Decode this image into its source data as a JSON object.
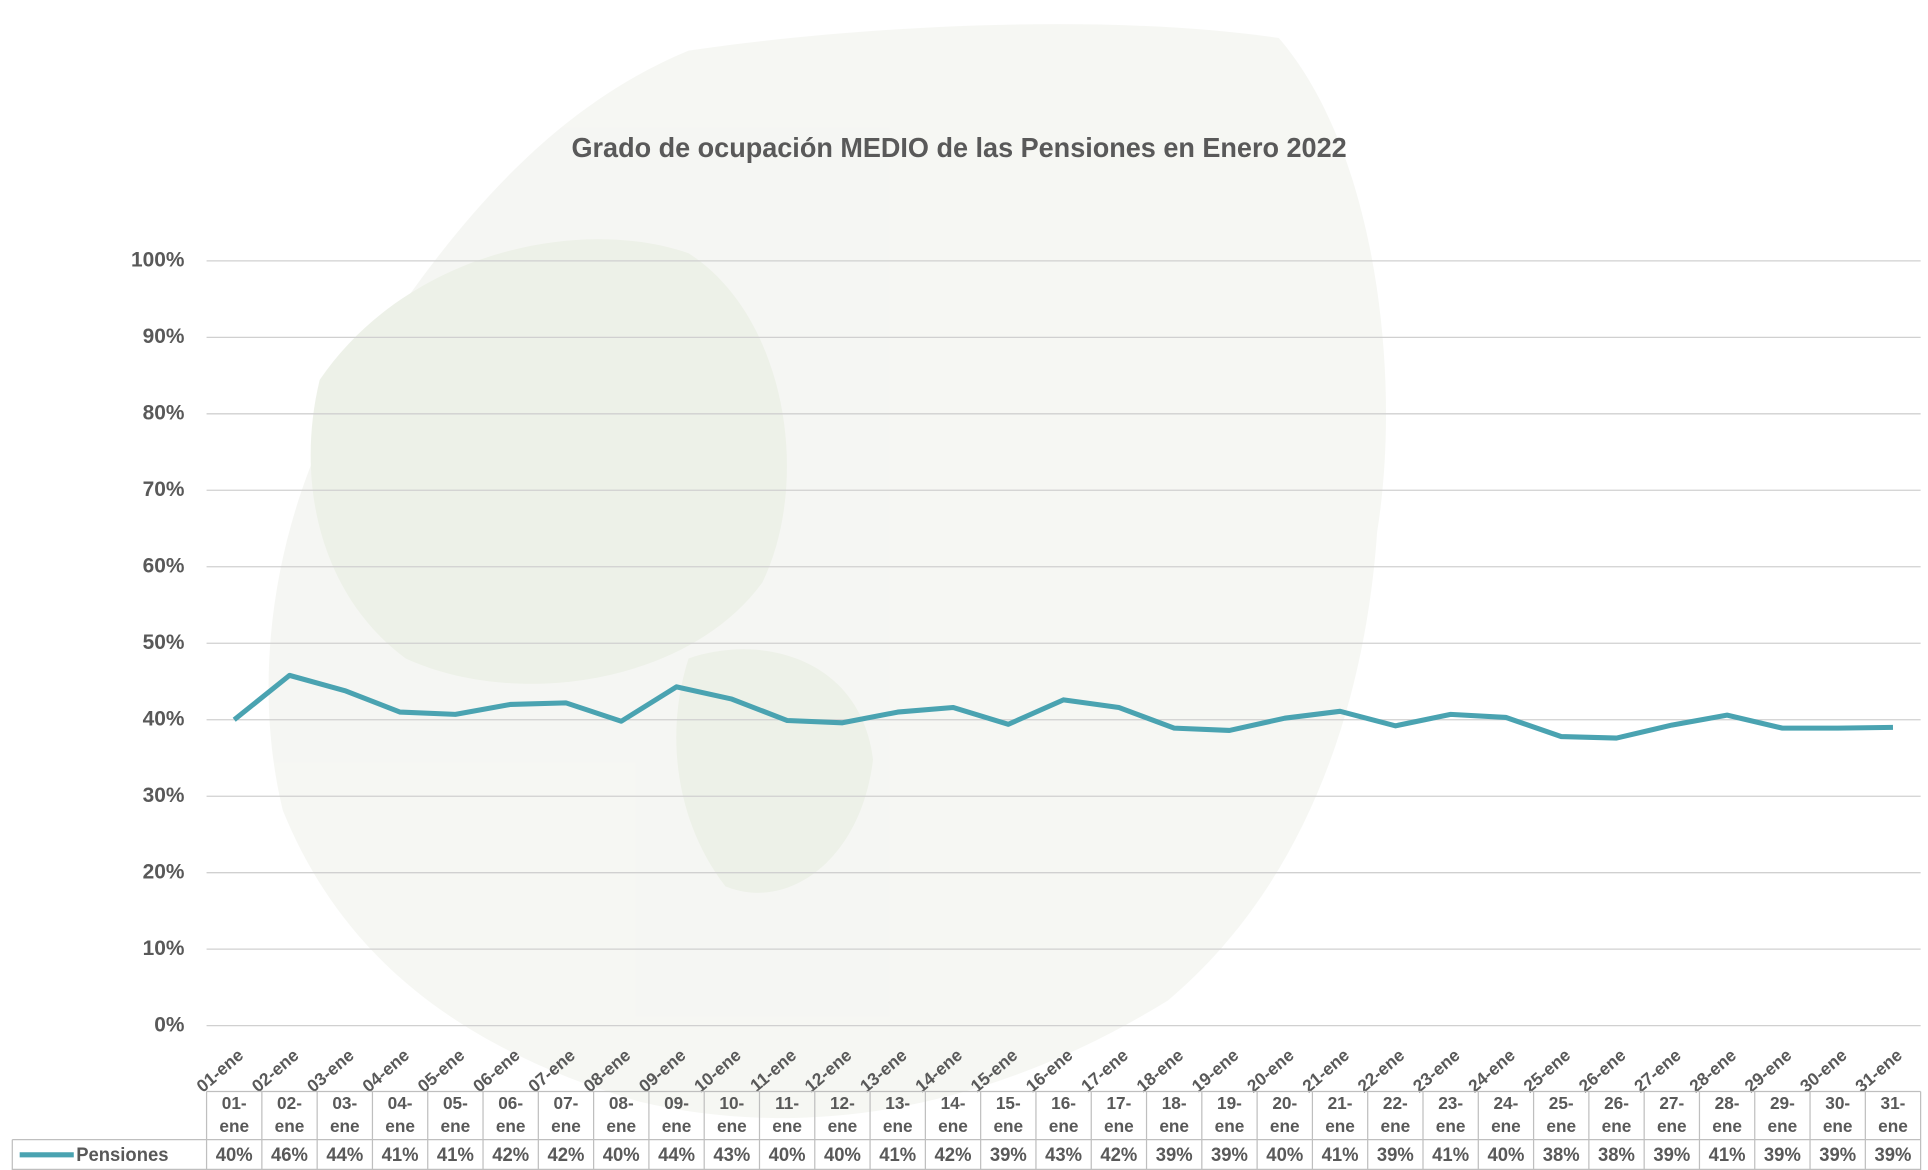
{
  "chart_data": {
    "type": "line",
    "title": "Grado de ocupación MEDIO de las Pensiones en Enero 2022",
    "categories": [
      "01-ene",
      "02-ene",
      "03-ene",
      "04-ene",
      "05-ene",
      "06-ene",
      "07-ene",
      "08-ene",
      "09-ene",
      "10-ene",
      "11-ene",
      "12-ene",
      "13-ene",
      "14-ene",
      "15-ene",
      "16-ene",
      "17-ene",
      "18-ene",
      "19-ene",
      "20-ene",
      "21-ene",
      "22-ene",
      "23-ene",
      "24-ene",
      "25-ene",
      "26-ene",
      "27-ene",
      "28-ene",
      "29-ene",
      "30-ene",
      "31-ene"
    ],
    "series": [
      {
        "name": "Pensiones",
        "color": "#4aa3b1",
        "values": [
          40,
          45.8,
          43.8,
          41,
          40.7,
          42,
          42.2,
          39.8,
          44.3,
          42.7,
          39.9,
          39.6,
          41,
          41.6,
          39.4,
          42.6,
          41.6,
          38.9,
          38.6,
          40.2,
          41.1,
          39.2,
          40.7,
          40.3,
          37.8,
          37.6,
          39.3,
          40.6,
          38.9,
          38.9,
          39.0
        ],
        "value_labels": [
          "40%",
          "46%",
          "44%",
          "41%",
          "41%",
          "42%",
          "42%",
          "40%",
          "44%",
          "43%",
          "40%",
          "40%",
          "41%",
          "42%",
          "39%",
          "43%",
          "42%",
          "39%",
          "39%",
          "40%",
          "41%",
          "39%",
          "41%",
          "40%",
          "38%",
          "38%",
          "39%",
          "41%",
          "39%",
          "39%",
          "39%"
        ]
      }
    ],
    "ylim": [
      0,
      100
    ],
    "yticks": [
      {
        "value": 0,
        "label": "0%"
      },
      {
        "value": 10,
        "label": "10%"
      },
      {
        "value": 20,
        "label": "20%"
      },
      {
        "value": 30,
        "label": "30%"
      },
      {
        "value": 40,
        "label": "40%"
      },
      {
        "value": 50,
        "label": "50%"
      },
      {
        "value": 60,
        "label": "60%"
      },
      {
        "value": 70,
        "label": "70%"
      },
      {
        "value": 80,
        "label": "80%"
      },
      {
        "value": 90,
        "label": "90%"
      },
      {
        "value": 100,
        "label": "100%"
      }
    ],
    "grid": true
  }
}
